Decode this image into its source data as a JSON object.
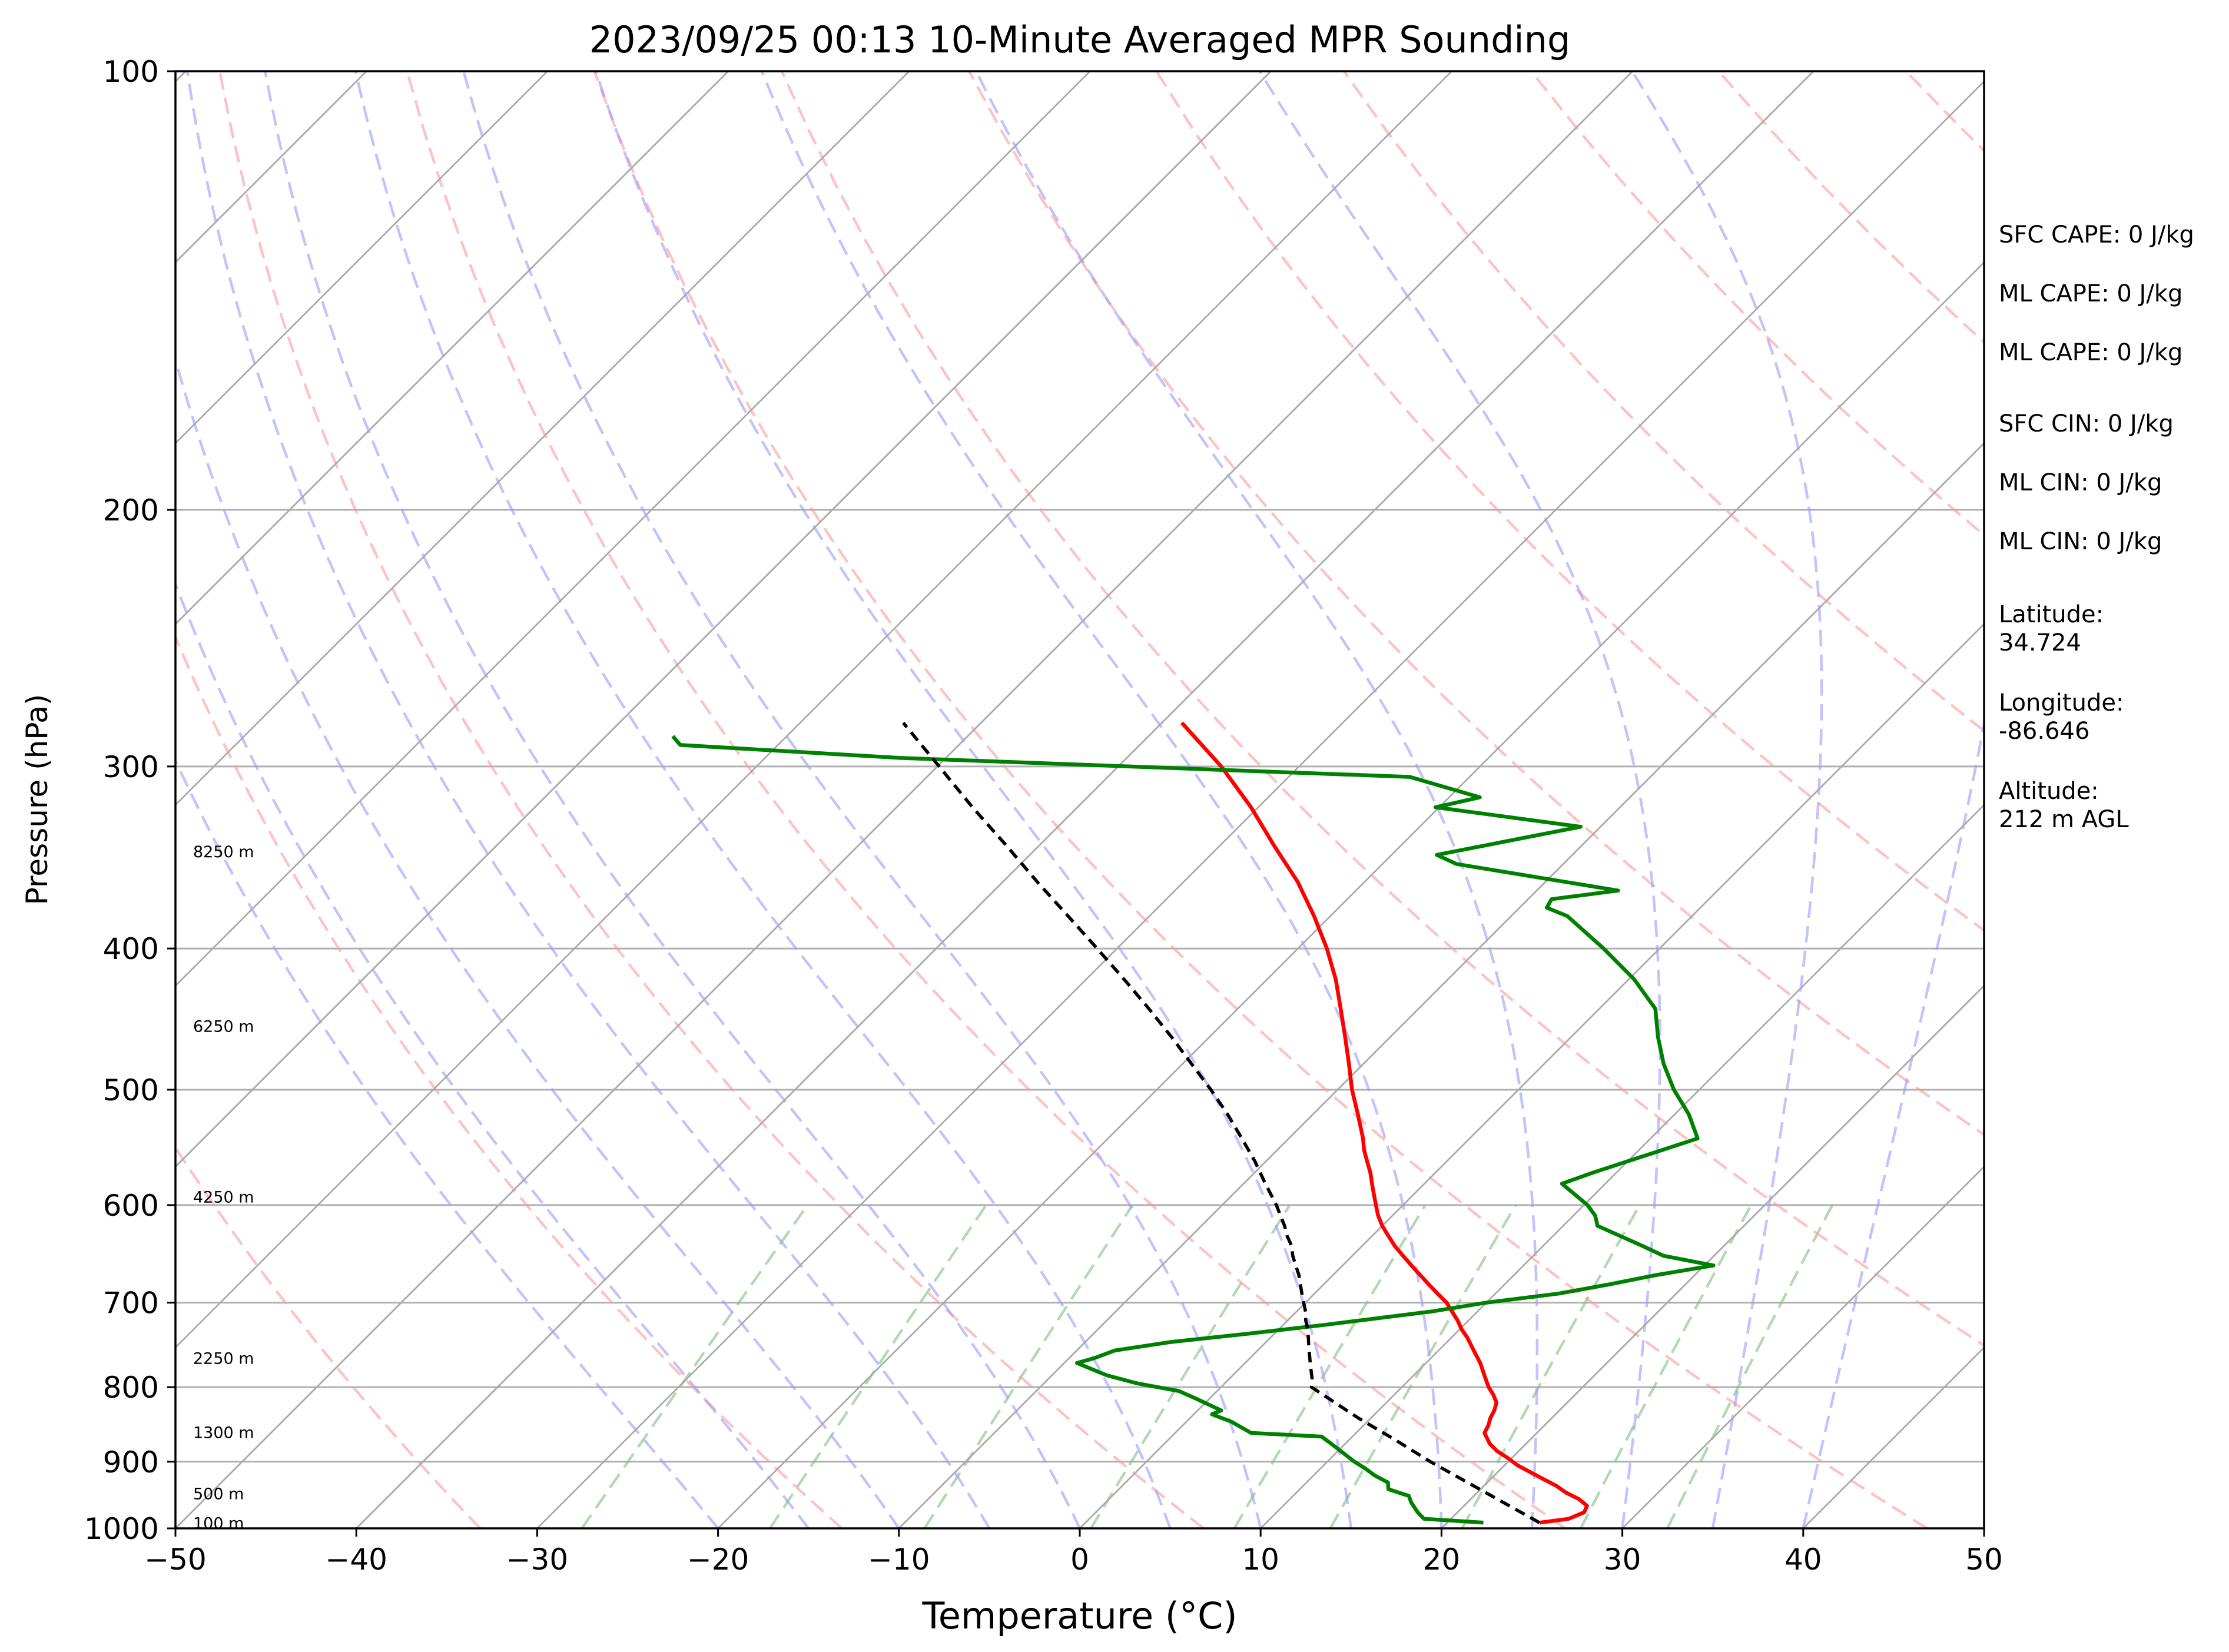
{
  "chart_data": {
    "type": "line",
    "title": "2023/09/25 00:13 10-Minute Averaged MPR Sounding",
    "xlabel": "Temperature (°C)",
    "ylabel": "Pressure (hPa)",
    "xlim": [
      -50,
      50
    ],
    "ylim": [
      1000,
      100
    ],
    "y_scale": "log",
    "x_ticks": [
      "−50",
      "−40",
      "−30",
      "−20",
      "−10",
      "0",
      "10",
      "20",
      "30",
      "40",
      "50"
    ],
    "y_ticks": [
      "100",
      "200",
      "300",
      "400",
      "500",
      "600",
      "700",
      "800",
      "900",
      "1000"
    ],
    "grid": true,
    "height_labels": [
      {
        "text": "8250 m",
        "p": 343
      },
      {
        "text": "6250 m",
        "p": 452
      },
      {
        "text": "4250 m",
        "p": 592
      },
      {
        "text": "2250 m",
        "p": 764
      },
      {
        "text": "1300 m",
        "p": 859
      },
      {
        "text": "500 m",
        "p": 946
      },
      {
        "text": "100 m",
        "p": 991
      }
    ],
    "series": [
      {
        "role": "temperature",
        "color": "#ff0000",
        "p": [
          991,
          985,
          975,
          965,
          955,
          945,
          935,
          925,
          915,
          905,
          895,
          885,
          875,
          860,
          850,
          840,
          830,
          820,
          810,
          800,
          790,
          780,
          770,
          760,
          750,
          740,
          730,
          720,
          710,
          700,
          690,
          680,
          670,
          660,
          650,
          640,
          630,
          620,
          610,
          600,
          590,
          580,
          570,
          560,
          550,
          540,
          520,
          500,
          480,
          460,
          440,
          420,
          400,
          380,
          360,
          340,
          320,
          300,
          280
        ],
        "t": [
          25.1,
          26.5,
          27.0,
          26.8,
          26.0,
          24.9,
          24.0,
          22.9,
          21.8,
          20.7,
          19.8,
          18.8,
          18.0,
          17.1,
          16.9,
          16.6,
          16.4,
          16.1,
          15.5,
          14.8,
          14.2,
          13.6,
          13.0,
          12.3,
          11.6,
          10.9,
          10.1,
          9.4,
          8.6,
          7.8,
          6.8,
          5.8,
          4.8,
          3.8,
          2.8,
          1.8,
          0.9,
          0.0,
          -0.8,
          -1.5,
          -2.2,
          -2.9,
          -3.6,
          -4.4,
          -5.2,
          -5.9,
          -7.5,
          -9.2,
          -10.8,
          -12.5,
          -14.3,
          -16.2,
          -18.4,
          -20.9,
          -23.7,
          -27.0,
          -30.4,
          -34.3,
          -38.9
        ]
      },
      {
        "role": "dewpoint",
        "color": "#008000",
        "p": [
          991,
          985,
          975,
          960,
          950,
          940,
          930,
          920,
          910,
          900,
          880,
          865,
          860,
          845,
          835,
          830,
          815,
          805,
          795,
          785,
          770,
          764,
          755,
          745,
          735,
          725,
          710,
          700,
          690,
          680,
          670,
          660,
          650,
          640,
          620,
          610,
          600,
          580,
          570,
          540,
          520,
          500,
          480,
          460,
          440,
          420,
          400,
          380,
          375,
          370,
          365,
          350,
          345,
          340,
          330,
          320,
          315,
          305,
          296,
          290,
          286
        ],
        "t": [
          22.0,
          18.5,
          17.8,
          16.9,
          16.4,
          14.9,
          14.5,
          13.4,
          12.5,
          11.5,
          9.7,
          8.3,
          4.2,
          2.5,
          1.0,
          1.3,
          -0.7,
          -2.1,
          -4.9,
          -7.0,
          -9.3,
          -8.6,
          -7.9,
          -5.3,
          -1.4,
          2.3,
          7.4,
          10.0,
          13.5,
          15.8,
          17.9,
          20.5,
          17.2,
          15.5,
          11.9,
          11.2,
          10.2,
          7.6,
          8.7,
          12.6,
          10.8,
          8.6,
          6.6,
          4.8,
          3.1,
          0.3,
          -3.1,
          -6.9,
          -8.5,
          -8.7,
          -5.5,
          -15.9,
          -17.5,
          -15.4,
          -11.1,
          -20.2,
          -18.3,
          -23.3,
          -52.5,
          -65.4,
          -66.3
        ]
      },
      {
        "role": "parcel",
        "color": "#000000",
        "style": "dashed",
        "p": [
          991,
          960,
          930,
          900,
          870,
          840,
          810,
          800,
          790,
          780,
          770,
          760,
          750,
          740,
          730,
          720,
          710,
          700,
          690,
          680,
          670,
          660,
          650,
          640,
          630,
          620,
          610,
          600,
          580,
          560,
          540,
          520,
          500,
          480,
          460,
          440,
          420,
          400,
          380,
          360,
          340,
          320,
          300,
          280
        ],
        "t": [
          25.1,
          22.0,
          18.9,
          15.7,
          12.6,
          9.3,
          6.1,
          5.0,
          4.6,
          4.1,
          3.6,
          3.1,
          2.6,
          2.1,
          1.6,
          1.0,
          0.5,
          -0.1,
          -0.7,
          -1.3,
          -1.9,
          -2.6,
          -3.3,
          -3.9,
          -4.7,
          -5.4,
          -6.2,
          -7.0,
          -8.8,
          -10.6,
          -12.6,
          -14.7,
          -17.0,
          -19.5,
          -22.1,
          -24.9,
          -27.9,
          -31.1,
          -34.5,
          -38.1,
          -41.8,
          -45.8,
          -49.9,
          -54.3
        ]
      }
    ],
    "dry_adiabat_thetas_k": [
      220,
      240,
      260,
      280,
      300,
      320,
      340,
      360,
      380,
      400,
      420,
      440,
      460,
      480,
      500,
      520,
      540,
      560,
      580,
      600
    ],
    "moist_adiabat_starts_c": [
      -20,
      -15,
      -10,
      -5,
      0,
      5,
      10,
      15,
      20,
      25,
      30,
      35,
      40
    ],
    "mixing_ratio_lines_gkg": [
      0.4,
      1,
      2,
      4,
      7,
      10,
      16,
      24,
      32
    ],
    "isotherm_spacing_c": 10
  },
  "info_panel": [
    {
      "text": "SFC CAPE: 0 J/kg"
    },
    {
      "text": "ML CAPE: 0 J/kg"
    },
    {
      "text": "ML CAPE: 0 J/kg"
    },
    {
      "text": "SFC CIN: 0 J/kg"
    },
    {
      "text": "ML CIN: 0 J/kg"
    },
    {
      "text": "ML CIN: 0 J/kg"
    },
    {
      "text": "Latitude:",
      "text2": "34.724"
    },
    {
      "text": "Longitude:",
      "text2": "-86.646"
    },
    {
      "text": "Altitude:",
      "text2": "212 m AGL"
    }
  ]
}
